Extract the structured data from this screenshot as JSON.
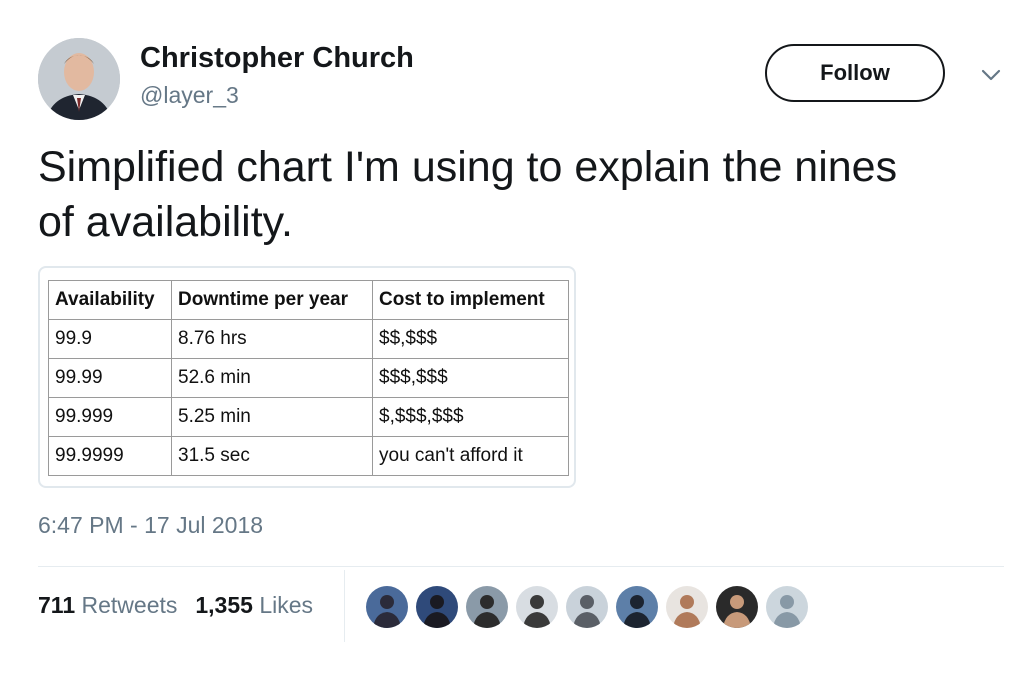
{
  "tweet": {
    "author": {
      "name": "Christopher Church",
      "handle": "@layer_3"
    },
    "follow_label": "Follow",
    "text": "Simplified chart I'm using to explain the nines of availability.",
    "timestamp": "6:47 PM - 17 Jul 2018",
    "stats": {
      "retweets_count": "711",
      "retweets_label": "Retweets",
      "likes_count": "1,355",
      "likes_label": "Likes"
    }
  },
  "table": {
    "headers": [
      "Availability",
      "Downtime per year",
      "Cost to implement"
    ],
    "rows": [
      [
        "99.9",
        "8.76 hrs",
        "$$,$$$"
      ],
      [
        "99.99",
        "52.6 min",
        "$$$,$$$"
      ],
      [
        "99.999",
        "5.25 min",
        "$,$$$,$$$"
      ],
      [
        "99.9999",
        "31.5 sec",
        "you can't afford it"
      ]
    ]
  },
  "likers": [
    {
      "icon": "liker-avatar-1",
      "bg": "#4a6a9a",
      "fg": "#2b2b3a"
    },
    {
      "icon": "liker-avatar-2",
      "bg": "#2f4a7a",
      "fg": "#1a1a22"
    },
    {
      "icon": "liker-avatar-3",
      "bg": "#8a9aa8",
      "fg": "#2c2c2c"
    },
    {
      "icon": "liker-avatar-4",
      "bg": "#d8dde2",
      "fg": "#3a3a3a"
    },
    {
      "icon": "liker-avatar-5",
      "bg": "#c9d2da",
      "fg": "#5a5f66"
    },
    {
      "icon": "liker-avatar-6",
      "bg": "#5d7fa8",
      "fg": "#1c2430"
    },
    {
      "icon": "liker-avatar-7",
      "bg": "#e8e4e0",
      "fg": "#b07a5a"
    },
    {
      "icon": "liker-avatar-8",
      "bg": "#2a2a2a",
      "fg": "#c89a7a"
    },
    {
      "icon": "default-avatar-icon",
      "bg": "#ccd6dd",
      "fg": "#8899a6"
    }
  ],
  "colors": {
    "text_primary": "#14171a",
    "text_secondary": "#657786",
    "border": "#e1e8ed"
  }
}
